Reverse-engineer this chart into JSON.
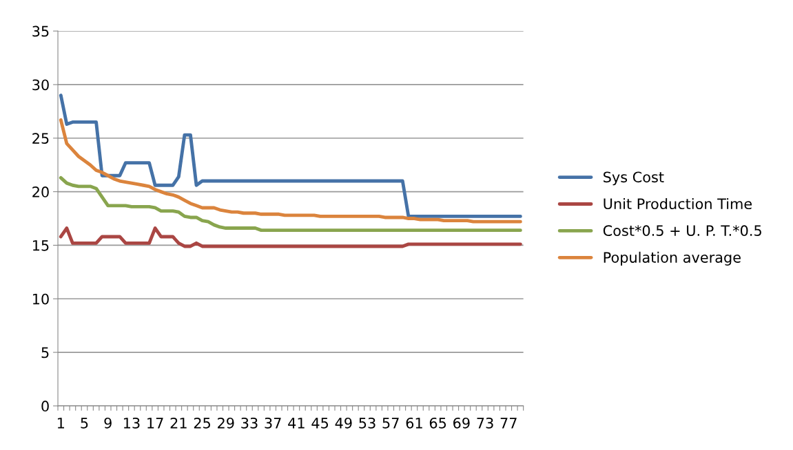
{
  "chart_data": {
    "type": "line",
    "categories": [
      "1",
      null,
      null,
      null,
      "5",
      null,
      null,
      null,
      "9",
      null,
      null,
      null,
      "13",
      null,
      null,
      null,
      "17",
      null,
      null,
      null,
      "21",
      null,
      null,
      null,
      "25",
      null,
      null,
      null,
      "29",
      null,
      null,
      null,
      "33",
      null,
      null,
      null,
      "37",
      null,
      null,
      null,
      "41",
      null,
      null,
      null,
      "45",
      null,
      null,
      null,
      "49",
      null,
      null,
      null,
      "53",
      null,
      null,
      null,
      "57",
      null,
      null,
      null,
      "61",
      null,
      null,
      null,
      "65",
      null,
      null,
      null,
      "69",
      null,
      null,
      null,
      "73",
      null,
      null,
      null,
      "77",
      null,
      null
    ],
    "series": [
      {
        "name": "Sys Cost",
        "color": "#4572a7",
        "values": [
          29.0,
          26.3,
          26.5,
          26.5,
          26.5,
          26.5,
          26.5,
          21.5,
          21.5,
          21.5,
          21.5,
          22.7,
          22.7,
          22.7,
          22.7,
          22.7,
          20.6,
          20.6,
          20.6,
          20.6,
          21.4,
          25.3,
          25.3,
          20.6,
          21.0,
          21.0,
          21.0,
          21.0,
          21.0,
          21.0,
          21.0,
          21.0,
          21.0,
          21.0,
          21.0,
          21.0,
          21.0,
          21.0,
          21.0,
          21.0,
          21.0,
          21.0,
          21.0,
          21.0,
          21.0,
          21.0,
          21.0,
          21.0,
          21.0,
          21.0,
          21.0,
          21.0,
          21.0,
          21.0,
          21.0,
          21.0,
          21.0,
          21.0,
          21.0,
          17.7,
          17.7,
          17.7,
          17.7,
          17.7,
          17.7,
          17.7,
          17.7,
          17.7,
          17.7,
          17.7,
          17.7,
          17.7,
          17.7,
          17.7,
          17.7,
          17.7,
          17.7,
          17.7,
          17.7
        ]
      },
      {
        "name": "Unit Production Time",
        "color": "#aa4643",
        "values": [
          15.8,
          16.6,
          15.2,
          15.2,
          15.2,
          15.2,
          15.2,
          15.8,
          15.8,
          15.8,
          15.8,
          15.2,
          15.2,
          15.2,
          15.2,
          15.2,
          16.6,
          15.8,
          15.8,
          15.8,
          15.2,
          14.9,
          14.9,
          15.2,
          14.9,
          14.9,
          14.9,
          14.9,
          14.9,
          14.9,
          14.9,
          14.9,
          14.9,
          14.9,
          14.9,
          14.9,
          14.9,
          14.9,
          14.9,
          14.9,
          14.9,
          14.9,
          14.9,
          14.9,
          14.9,
          14.9,
          14.9,
          14.9,
          14.9,
          14.9,
          14.9,
          14.9,
          14.9,
          14.9,
          14.9,
          14.9,
          14.9,
          14.9,
          14.9,
          15.1,
          15.1,
          15.1,
          15.1,
          15.1,
          15.1,
          15.1,
          15.1,
          15.1,
          15.1,
          15.1,
          15.1,
          15.1,
          15.1,
          15.1,
          15.1,
          15.1,
          15.1,
          15.1,
          15.1
        ]
      },
      {
        "name": "Cost*0.5 + U. P. T.*0.5",
        "color": "#89a54e",
        "values": [
          21.3,
          20.8,
          20.6,
          20.5,
          20.5,
          20.5,
          20.3,
          19.5,
          18.7,
          18.7,
          18.7,
          18.7,
          18.6,
          18.6,
          18.6,
          18.6,
          18.5,
          18.2,
          18.2,
          18.2,
          18.1,
          17.7,
          17.6,
          17.6,
          17.3,
          17.2,
          16.9,
          16.7,
          16.6,
          16.6,
          16.6,
          16.6,
          16.6,
          16.6,
          16.4,
          16.4,
          16.4,
          16.4,
          16.4,
          16.4,
          16.4,
          16.4,
          16.4,
          16.4,
          16.4,
          16.4,
          16.4,
          16.4,
          16.4,
          16.4,
          16.4,
          16.4,
          16.4,
          16.4,
          16.4,
          16.4,
          16.4,
          16.4,
          16.4,
          16.4,
          16.4,
          16.4,
          16.4,
          16.4,
          16.4,
          16.4,
          16.4,
          16.4,
          16.4,
          16.4,
          16.4,
          16.4,
          16.4,
          16.4,
          16.4,
          16.4,
          16.4,
          16.4,
          16.4
        ]
      },
      {
        "name": "Population average",
        "color": "#db843d",
        "values": [
          26.7,
          24.5,
          23.9,
          23.3,
          22.9,
          22.5,
          22.0,
          21.8,
          21.5,
          21.2,
          21.0,
          20.9,
          20.8,
          20.7,
          20.6,
          20.5,
          20.2,
          20.0,
          19.8,
          19.7,
          19.5,
          19.2,
          18.9,
          18.7,
          18.5,
          18.5,
          18.5,
          18.3,
          18.2,
          18.1,
          18.1,
          18.0,
          18.0,
          18.0,
          17.9,
          17.9,
          17.9,
          17.9,
          17.8,
          17.8,
          17.8,
          17.8,
          17.8,
          17.8,
          17.7,
          17.7,
          17.7,
          17.7,
          17.7,
          17.7,
          17.7,
          17.7,
          17.7,
          17.7,
          17.7,
          17.6,
          17.6,
          17.6,
          17.6,
          17.5,
          17.5,
          17.4,
          17.4,
          17.4,
          17.4,
          17.3,
          17.3,
          17.3,
          17.3,
          17.3,
          17.2,
          17.2,
          17.2,
          17.2,
          17.2,
          17.2,
          17.2,
          17.2,
          17.2
        ]
      }
    ],
    "ylim": [
      0,
      35
    ],
    "yticks": [
      0,
      5,
      10,
      15,
      20,
      25,
      30,
      35
    ],
    "grid": "y",
    "legend": "right",
    "marker": "none",
    "line_style": "solid"
  }
}
